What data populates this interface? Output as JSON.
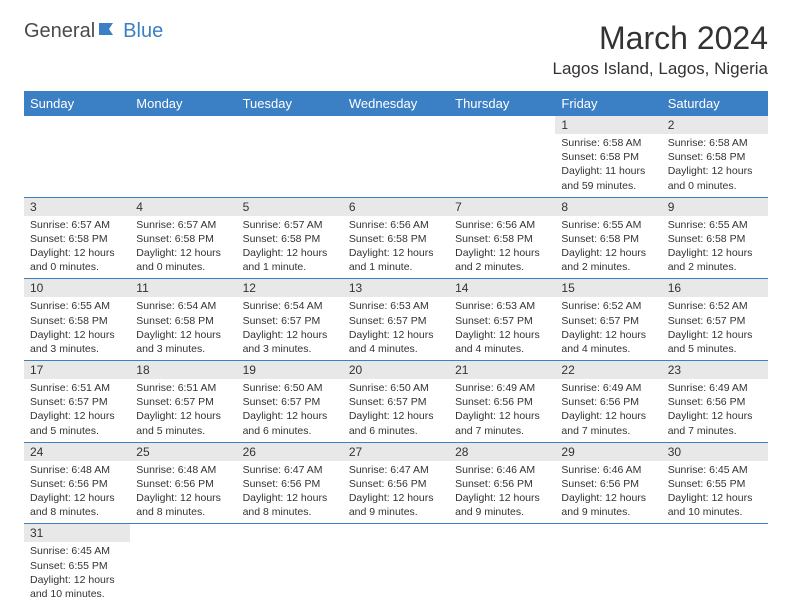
{
  "header": {
    "logo_general": "General",
    "logo_blue": "Blue",
    "month_title": "March 2024",
    "location": "Lagos Island, Lagos, Nigeria"
  },
  "colors": {
    "header_bg": "#3b7fc4",
    "header_text": "#ffffff",
    "daynum_bg": "#e8e8e8",
    "text": "#333333",
    "border": "#3b7fc4"
  },
  "weekdays": [
    "Sunday",
    "Monday",
    "Tuesday",
    "Wednesday",
    "Thursday",
    "Friday",
    "Saturday"
  ],
  "weeks": [
    [
      null,
      null,
      null,
      null,
      null,
      {
        "num": "1",
        "sunrise": "Sunrise: 6:58 AM",
        "sunset": "Sunset: 6:58 PM",
        "daylight": "Daylight: 11 hours and 59 minutes."
      },
      {
        "num": "2",
        "sunrise": "Sunrise: 6:58 AM",
        "sunset": "Sunset: 6:58 PM",
        "daylight": "Daylight: 12 hours and 0 minutes."
      }
    ],
    [
      {
        "num": "3",
        "sunrise": "Sunrise: 6:57 AM",
        "sunset": "Sunset: 6:58 PM",
        "daylight": "Daylight: 12 hours and 0 minutes."
      },
      {
        "num": "4",
        "sunrise": "Sunrise: 6:57 AM",
        "sunset": "Sunset: 6:58 PM",
        "daylight": "Daylight: 12 hours and 0 minutes."
      },
      {
        "num": "5",
        "sunrise": "Sunrise: 6:57 AM",
        "sunset": "Sunset: 6:58 PM",
        "daylight": "Daylight: 12 hours and 1 minute."
      },
      {
        "num": "6",
        "sunrise": "Sunrise: 6:56 AM",
        "sunset": "Sunset: 6:58 PM",
        "daylight": "Daylight: 12 hours and 1 minute."
      },
      {
        "num": "7",
        "sunrise": "Sunrise: 6:56 AM",
        "sunset": "Sunset: 6:58 PM",
        "daylight": "Daylight: 12 hours and 2 minutes."
      },
      {
        "num": "8",
        "sunrise": "Sunrise: 6:55 AM",
        "sunset": "Sunset: 6:58 PM",
        "daylight": "Daylight: 12 hours and 2 minutes."
      },
      {
        "num": "9",
        "sunrise": "Sunrise: 6:55 AM",
        "sunset": "Sunset: 6:58 PM",
        "daylight": "Daylight: 12 hours and 2 minutes."
      }
    ],
    [
      {
        "num": "10",
        "sunrise": "Sunrise: 6:55 AM",
        "sunset": "Sunset: 6:58 PM",
        "daylight": "Daylight: 12 hours and 3 minutes."
      },
      {
        "num": "11",
        "sunrise": "Sunrise: 6:54 AM",
        "sunset": "Sunset: 6:58 PM",
        "daylight": "Daylight: 12 hours and 3 minutes."
      },
      {
        "num": "12",
        "sunrise": "Sunrise: 6:54 AM",
        "sunset": "Sunset: 6:57 PM",
        "daylight": "Daylight: 12 hours and 3 minutes."
      },
      {
        "num": "13",
        "sunrise": "Sunrise: 6:53 AM",
        "sunset": "Sunset: 6:57 PM",
        "daylight": "Daylight: 12 hours and 4 minutes."
      },
      {
        "num": "14",
        "sunrise": "Sunrise: 6:53 AM",
        "sunset": "Sunset: 6:57 PM",
        "daylight": "Daylight: 12 hours and 4 minutes."
      },
      {
        "num": "15",
        "sunrise": "Sunrise: 6:52 AM",
        "sunset": "Sunset: 6:57 PM",
        "daylight": "Daylight: 12 hours and 4 minutes."
      },
      {
        "num": "16",
        "sunrise": "Sunrise: 6:52 AM",
        "sunset": "Sunset: 6:57 PM",
        "daylight": "Daylight: 12 hours and 5 minutes."
      }
    ],
    [
      {
        "num": "17",
        "sunrise": "Sunrise: 6:51 AM",
        "sunset": "Sunset: 6:57 PM",
        "daylight": "Daylight: 12 hours and 5 minutes."
      },
      {
        "num": "18",
        "sunrise": "Sunrise: 6:51 AM",
        "sunset": "Sunset: 6:57 PM",
        "daylight": "Daylight: 12 hours and 5 minutes."
      },
      {
        "num": "19",
        "sunrise": "Sunrise: 6:50 AM",
        "sunset": "Sunset: 6:57 PM",
        "daylight": "Daylight: 12 hours and 6 minutes."
      },
      {
        "num": "20",
        "sunrise": "Sunrise: 6:50 AM",
        "sunset": "Sunset: 6:57 PM",
        "daylight": "Daylight: 12 hours and 6 minutes."
      },
      {
        "num": "21",
        "sunrise": "Sunrise: 6:49 AM",
        "sunset": "Sunset: 6:56 PM",
        "daylight": "Daylight: 12 hours and 7 minutes."
      },
      {
        "num": "22",
        "sunrise": "Sunrise: 6:49 AM",
        "sunset": "Sunset: 6:56 PM",
        "daylight": "Daylight: 12 hours and 7 minutes."
      },
      {
        "num": "23",
        "sunrise": "Sunrise: 6:49 AM",
        "sunset": "Sunset: 6:56 PM",
        "daylight": "Daylight: 12 hours and 7 minutes."
      }
    ],
    [
      {
        "num": "24",
        "sunrise": "Sunrise: 6:48 AM",
        "sunset": "Sunset: 6:56 PM",
        "daylight": "Daylight: 12 hours and 8 minutes."
      },
      {
        "num": "25",
        "sunrise": "Sunrise: 6:48 AM",
        "sunset": "Sunset: 6:56 PM",
        "daylight": "Daylight: 12 hours and 8 minutes."
      },
      {
        "num": "26",
        "sunrise": "Sunrise: 6:47 AM",
        "sunset": "Sunset: 6:56 PM",
        "daylight": "Daylight: 12 hours and 8 minutes."
      },
      {
        "num": "27",
        "sunrise": "Sunrise: 6:47 AM",
        "sunset": "Sunset: 6:56 PM",
        "daylight": "Daylight: 12 hours and 9 minutes."
      },
      {
        "num": "28",
        "sunrise": "Sunrise: 6:46 AM",
        "sunset": "Sunset: 6:56 PM",
        "daylight": "Daylight: 12 hours and 9 minutes."
      },
      {
        "num": "29",
        "sunrise": "Sunrise: 6:46 AM",
        "sunset": "Sunset: 6:56 PM",
        "daylight": "Daylight: 12 hours and 9 minutes."
      },
      {
        "num": "30",
        "sunrise": "Sunrise: 6:45 AM",
        "sunset": "Sunset: 6:55 PM",
        "daylight": "Daylight: 12 hours and 10 minutes."
      }
    ],
    [
      {
        "num": "31",
        "sunrise": "Sunrise: 6:45 AM",
        "sunset": "Sunset: 6:55 PM",
        "daylight": "Daylight: 12 hours and 10 minutes."
      },
      null,
      null,
      null,
      null,
      null,
      null
    ]
  ]
}
